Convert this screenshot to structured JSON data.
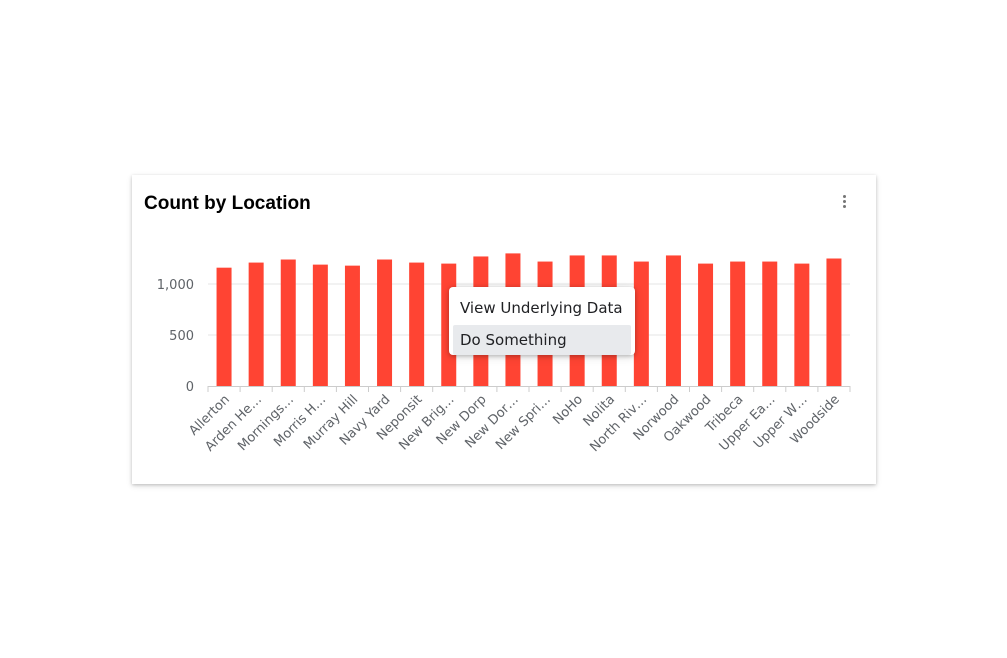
{
  "card": {
    "title": "Count by Location",
    "menu_icon": "more-vert-icon"
  },
  "context_menu": {
    "items": [
      "View Underlying Data",
      "Do Something"
    ],
    "highlighted_index": 1
  },
  "colors": {
    "bar": "#ff4433",
    "grid": "#e6e6e6",
    "axis": "#cccccc"
  },
  "chart_data": {
    "type": "bar",
    "categories": [
      "Allerton",
      "Arden He…",
      "Mornings…",
      "Morris H…",
      "Murray Hill",
      "Navy Yard",
      "Neponsit",
      "New Brig…",
      "New Dorp",
      "New Dor…",
      "New Spri…",
      "NoHo",
      "Nolita",
      "North Riv…",
      "Norwood",
      "Oakwood",
      "Tribeca",
      "Upper Ea…",
      "Upper W…",
      "Woodside"
    ],
    "values": [
      1160,
      1210,
      1240,
      1190,
      1180,
      1240,
      1210,
      1200,
      1270,
      1300,
      1220,
      1280,
      1280,
      1220,
      1280,
      1200,
      1220,
      1220,
      1200,
      1250
    ],
    "yticks": [
      0,
      500,
      1000
    ],
    "ytick_labels": [
      "0",
      "500",
      "1,000"
    ],
    "ylim": [
      0,
      1300
    ],
    "grid": true
  }
}
